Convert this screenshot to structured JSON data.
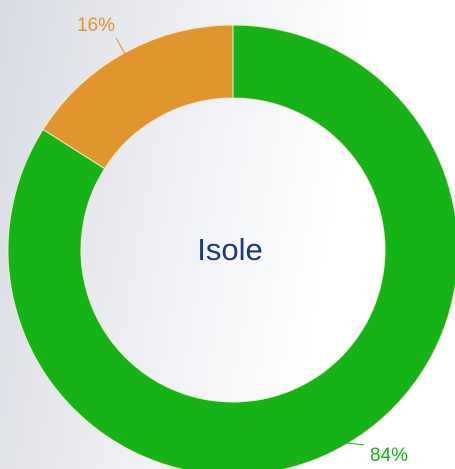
{
  "chart_data": {
    "type": "donut",
    "center_text": "Isole",
    "values": [
      84,
      16
    ],
    "value_labels": [
      "84%",
      "16%"
    ],
    "colors": [
      "#16b316",
      "#e0952f"
    ]
  }
}
